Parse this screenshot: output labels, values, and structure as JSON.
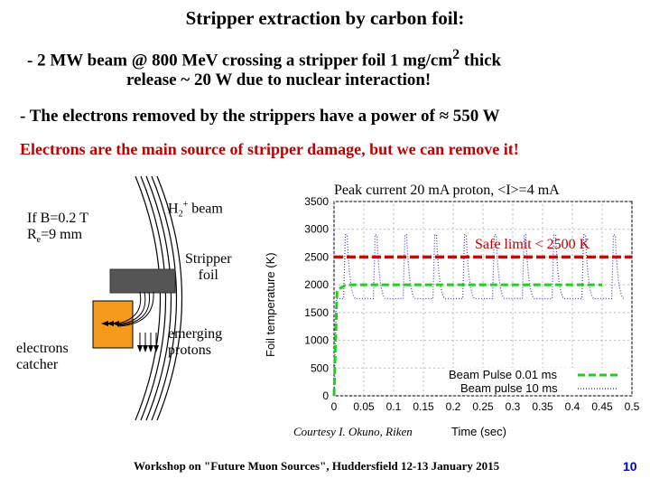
{
  "title": "Stripper extraction by carbon foil:",
  "bullet1": {
    "line1": "- 2 MW beam @ 800 MeV  crossing a stripper foil 1 mg/cm",
    "sup": "2",
    "line1_end": " thick",
    "line2": "release  ~ 20 W due to nuclear interaction!"
  },
  "bullet2": "- The electrons removed by the strippers have a power of ≈ 550 W",
  "highlight": "Electrons are the main source of stripper damage, but we can remove it!",
  "diagram": {
    "field_label_1": "If B=0.2 T",
    "field_label_2_pre": "R",
    "field_label_2_sub": "e",
    "field_label_2_post": "=9  mm",
    "beam_label_pre": "H",
    "beam_label_sub": "2",
    "beam_label_sup": "+",
    "beam_label_post": " beam",
    "foil_label_1": "Stripper",
    "foil_label_2": "foil",
    "catcher_label_1": "electrons",
    "catcher_label_2": "catcher",
    "protons_label_1": "emerging",
    "protons_label_2": "protons"
  },
  "plot": {
    "header": "Peak current 20 mA proton, <I>=4 mA",
    "safe_limit": "Safe limit < 2500 K",
    "ylabel": "Foil temperature (K)",
    "xlabel": "Time (sec)",
    "legend": [
      "Beam Pulse 0.01 ms",
      "Beam pulse 10 ms"
    ],
    "colors": {
      "limit": "#e00000",
      "series1": "#22cc22",
      "series2": "#4040c0"
    }
  },
  "chart_data": {
    "type": "line",
    "title": "Peak current 20 mA proton, <I>=4 mA",
    "xlabel": "Time (sec)",
    "ylabel": "Foil temperature (K)",
    "xlim": [
      0,
      0.5
    ],
    "ylim": [
      0,
      3500
    ],
    "x_ticks": [
      "0",
      "0.05",
      "0.1",
      "0.15",
      "0.2",
      "0.25",
      "0.3",
      "0.35",
      "0.4",
      "0.45",
      "0.5"
    ],
    "y_ticks": [
      "0",
      "500",
      "1000",
      "1500",
      "2000",
      "2500",
      "3000",
      "3500"
    ],
    "annotations": [
      {
        "text": "Safe limit < 2500 K",
        "y": 2500
      }
    ],
    "series": [
      {
        "name": "Beam Pulse 0.01 ms",
        "style": "dashed",
        "color": "#22cc22",
        "x": [
          0,
          0.005,
          0.02,
          0.45
        ],
        "y": [
          0,
          1900,
          2000,
          2000
        ]
      },
      {
        "name": "Beam pulse 10 ms",
        "style": "dotted",
        "color": "#4040c0",
        "pulse_times": [
          0.02,
          0.07,
          0.12,
          0.17,
          0.22,
          0.27,
          0.32,
          0.37,
          0.42,
          0.47
        ],
        "peak": 2900,
        "baseline": 1750
      }
    ],
    "limit_line": {
      "y": 2500,
      "color": "#e00000",
      "style": "dashed"
    }
  },
  "credit": "Courtesy I. Okuno, Riken",
  "footer": "Workshop on \"Future Muon Sources\", Huddersfield 12-13 January 2015",
  "page_number": "10"
}
